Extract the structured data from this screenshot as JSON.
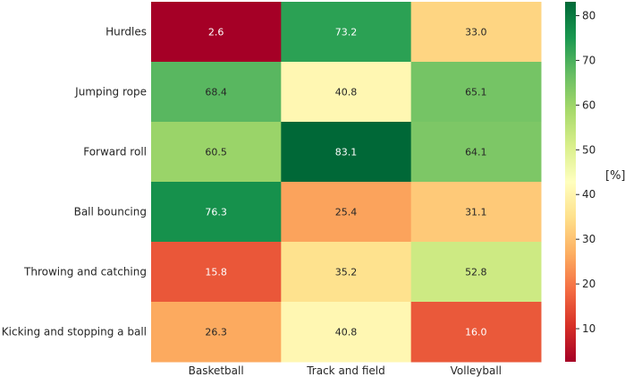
{
  "chart_data": {
    "type": "heatmap",
    "rows": [
      "Hurdles",
      "Jumping rope",
      "Forward roll",
      "Ball bouncing",
      "Throwing and catching",
      "Kicking and stopping a ball"
    ],
    "columns": [
      "Basketball",
      "Track and field",
      "Volleyball"
    ],
    "values": [
      [
        2.6,
        73.2,
        33.0
      ],
      [
        68.4,
        40.8,
        65.1
      ],
      [
        60.5,
        83.1,
        64.1
      ],
      [
        76.3,
        25.4,
        31.1
      ],
      [
        15.8,
        35.2,
        52.8
      ],
      [
        26.3,
        40.8,
        16.0
      ]
    ],
    "colormap": "RdYlGn",
    "vmin": 2.6,
    "vmax": 83.1,
    "colorbar": {
      "label": "[%]",
      "ticks": [
        10,
        20,
        30,
        40,
        50,
        60,
        70,
        80
      ]
    }
  }
}
